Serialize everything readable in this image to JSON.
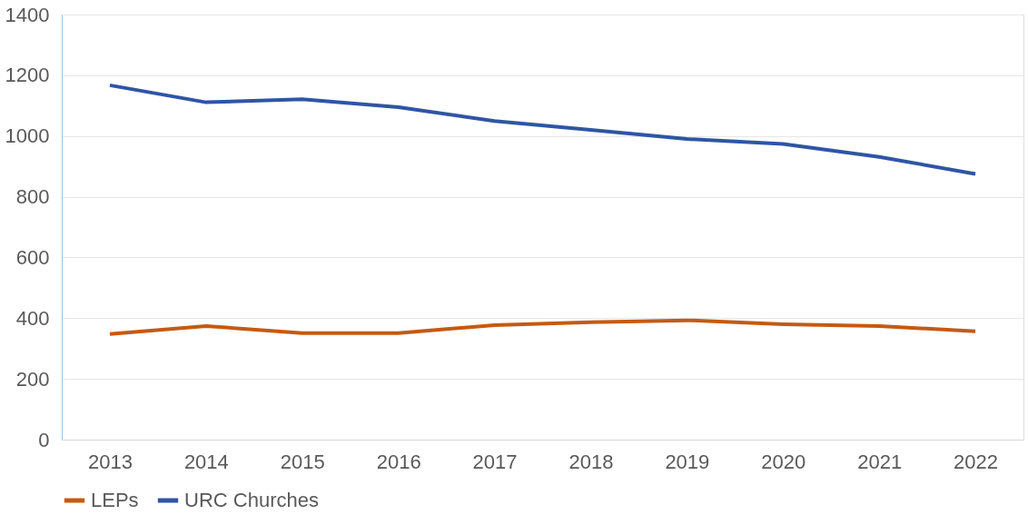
{
  "chart_data": {
    "type": "line",
    "categories": [
      "2013",
      "2014",
      "2015",
      "2016",
      "2017",
      "2018",
      "2019",
      "2020",
      "2021",
      "2022"
    ],
    "series": [
      {
        "name": "LEPs",
        "color": "#c55a11",
        "values": [
          348,
          374,
          351,
          351,
          377,
          387,
          393,
          380,
          374,
          357
        ]
      },
      {
        "name": "URC Churches",
        "color": "#2f55a4",
        "values": [
          1167,
          1111,
          1121,
          1095,
          1049,
          1020,
          990,
          974,
          931,
          875
        ]
      }
    ],
    "ylim": [
      0,
      1400
    ],
    "yticks": [
      0,
      200,
      400,
      600,
      800,
      1000,
      1200,
      1400
    ],
    "grid": "y",
    "legend": "bottom",
    "marker": "none",
    "line_style": "solid"
  }
}
